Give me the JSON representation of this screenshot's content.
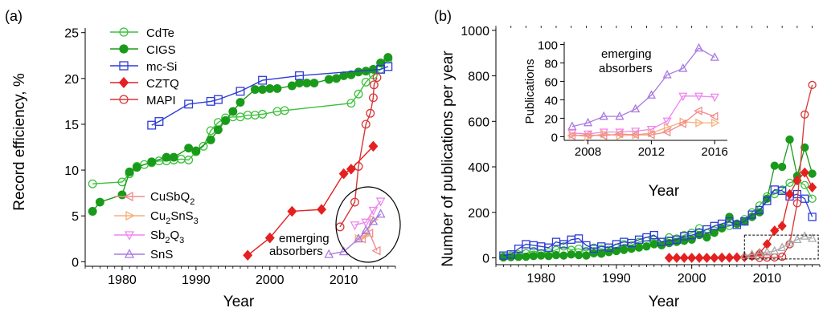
{
  "chart_data": [
    {
      "panel_label": "(a)",
      "type": "line",
      "xlabel": "Year",
      "ylabel": "Record efficiency, %",
      "xlim": [
        1975,
        2017
      ],
      "ylim": [
        -0.5,
        25.5
      ],
      "xticks": [
        "1980",
        "1990",
        "2000",
        "2010"
      ],
      "yticks": [
        "0",
        "5",
        "10",
        "15",
        "20",
        "25"
      ],
      "legend_main": [
        "CdTe",
        "CIGS",
        "mc-Si",
        "CZTQ",
        "MAPI"
      ],
      "legend_emerging": [
        "CuSbQ",
        "Cu",
        "SnS",
        "Sb",
        "Q",
        "SnS"
      ],
      "legend_emerging_sub": [
        "2",
        "2",
        "3",
        "2",
        "3"
      ],
      "annotation": [
        "emerging",
        "absorbers"
      ],
      "series": [
        {
          "name": "CdTe",
          "color": "#3ac03a",
          "marker": "open-circle",
          "x": [
            1976,
            1980,
            1981,
            1982,
            1983,
            1984,
            1985,
            1986,
            1987,
            1988,
            1989,
            1990,
            1991,
            1992,
            1993,
            1994,
            1995,
            1996,
            1997,
            1998,
            1999,
            2001,
            2002,
            2011,
            2012,
            2013,
            2014,
            2015,
            2016
          ],
          "y": [
            8.5,
            8.7,
            9.6,
            10.4,
            10.6,
            10.8,
            11.0,
            11.0,
            11.1,
            11.2,
            11.1,
            12.0,
            12.6,
            14.3,
            15.2,
            15.7,
            15.8,
            15.8,
            16.0,
            16.0,
            16.1,
            16.4,
            16.5,
            17.3,
            18.3,
            19.6,
            20.4,
            21.0,
            22.1
          ]
        },
        {
          "name": "CIGS",
          "color": "#1a9a1a",
          "marker": "filled-circle",
          "x": [
            1976,
            1977,
            1980,
            1981,
            1982,
            1984,
            1986,
            1987,
            1989,
            1990,
            1992,
            1993,
            1994,
            1995,
            1996,
            1998,
            1999,
            2000,
            2001,
            2003,
            2004,
            2005,
            2006,
            2008,
            2009,
            2010,
            2011,
            2012,
            2013,
            2014,
            2015,
            2016
          ],
          "y": [
            5.5,
            6.5,
            7.3,
            9.8,
            10.3,
            10.9,
            11.4,
            11.4,
            12.4,
            12.1,
            13.3,
            14.4,
            15.4,
            16.4,
            17.4,
            18.8,
            18.8,
            18.9,
            18.9,
            19.2,
            19.5,
            19.5,
            19.5,
            19.9,
            20.0,
            20.3,
            20.4,
            20.7,
            20.8,
            21.0,
            21.7,
            22.3
          ]
        },
        {
          "name": "mc-Si",
          "color": "#2d3bd6",
          "marker": "open-square",
          "x": [
            1984,
            1985,
            1989,
            1992,
            1993,
            1996,
            1999,
            2004,
            2015,
            2016
          ],
          "y": [
            14.9,
            15.3,
            17.2,
            17.5,
            17.7,
            18.6,
            19.8,
            20.3,
            21.0,
            21.3
          ]
        },
        {
          "name": "CZTQ",
          "color": "#e42020",
          "marker": "filled-diamond",
          "x": [
            1997,
            2000,
            2003,
            2007,
            2010,
            2011,
            2014
          ],
          "y": [
            0.7,
            2.6,
            5.5,
            5.7,
            9.6,
            10.1,
            12.6
          ]
        },
        {
          "name": "MAPI",
          "color": "#d83636",
          "marker": "open-circle",
          "x": [
            2009.5,
            2011.5,
            2012,
            2013,
            2013.6,
            2014,
            2014.1,
            2014.5
          ],
          "y": [
            3.8,
            6.5,
            10.4,
            15.0,
            16.2,
            17.9,
            19.3,
            20.1
          ]
        },
        {
          "name": "CuSbQ2",
          "color": "#f28c8c",
          "marker": "left-triangle",
          "x": [
            2012.5,
            2013.5,
            2014.5
          ],
          "y": [
            2.5,
            3.1,
            1.2
          ]
        },
        {
          "name": "Cu2SnS3",
          "color": "#f5b07a",
          "marker": "right-triangle",
          "x": [
            2012,
            2013,
            2014
          ],
          "y": [
            2.5,
            2.9,
            4.6
          ]
        },
        {
          "name": "Sb2Q3",
          "color": "#ef86ef",
          "marker": "down-triangle",
          "x": [
            2011.5,
            2013,
            2014,
            2015
          ],
          "y": [
            4.0,
            4.3,
            5.6,
            6.6
          ]
        },
        {
          "name": "SnS",
          "color": "#a97ae0",
          "marker": "up-triangle",
          "x": [
            2008,
            2010,
            2012,
            2013,
            2014,
            2015
          ],
          "y": [
            0.8,
            1.1,
            2.5,
            3.4,
            4.4,
            5.2
          ]
        }
      ]
    },
    {
      "panel_label": "(b)",
      "type": "line",
      "xlabel": "Year",
      "ylabel": "Number of publications per year",
      "xlim": [
        1974,
        2017
      ],
      "ylim": [
        -30,
        1010
      ],
      "xticks": [
        "1980",
        "1990",
        "2000",
        "2010"
      ],
      "yticks": [
        "0",
        "200",
        "400",
        "600",
        "800",
        "1000"
      ],
      "series": [
        {
          "name": "CdTe",
          "color": "#3ac03a",
          "marker": "open-circle",
          "x": [
            1975,
            1976,
            1977,
            1978,
            1979,
            1980,
            1981,
            1982,
            1983,
            1984,
            1985,
            1986,
            1987,
            1988,
            1989,
            1990,
            1991,
            1992,
            1993,
            1994,
            1995,
            1996,
            1997,
            1998,
            1999,
            2000,
            2001,
            2002,
            2003,
            2004,
            2005,
            2006,
            2007,
            2008,
            2009,
            2010,
            2011,
            2012,
            2013,
            2014,
            2015,
            2016
          ],
          "y": [
            5,
            10,
            15,
            20,
            30,
            20,
            25,
            35,
            50,
            35,
            40,
            30,
            45,
            40,
            35,
            45,
            60,
            55,
            70,
            75,
            80,
            70,
            90,
            85,
            100,
            110,
            130,
            110,
            120,
            130,
            140,
            150,
            170,
            200,
            230,
            270,
            280,
            300,
            330,
            340,
            320,
            260
          ]
        },
        {
          "name": "CIGS",
          "color": "#1a9a1a",
          "marker": "filled-circle",
          "x": [
            1975,
            1976,
            1977,
            1978,
            1979,
            1980,
            1981,
            1982,
            1983,
            1984,
            1985,
            1986,
            1987,
            1988,
            1989,
            1990,
            1991,
            1992,
            1993,
            1994,
            1995,
            1996,
            1997,
            1998,
            1999,
            2000,
            2001,
            2002,
            2003,
            2004,
            2005,
            2006,
            2007,
            2008,
            2009,
            2010,
            2011,
            2012,
            2013,
            2014,
            2015,
            2016
          ],
          "y": [
            2,
            3,
            4,
            5,
            8,
            10,
            8,
            12,
            10,
            15,
            12,
            10,
            20,
            18,
            25,
            30,
            35,
            40,
            45,
            50,
            60,
            55,
            65,
            70,
            75,
            80,
            100,
            90,
            110,
            130,
            180,
            150,
            160,
            180,
            200,
            260,
            405,
            400,
            520,
            360,
            485,
            370
          ]
        },
        {
          "name": "mc-Si",
          "color": "#2d3bd6",
          "marker": "open-square",
          "x": [
            1975,
            1976,
            1977,
            1978,
            1979,
            1980,
            1981,
            1982,
            1983,
            1984,
            1985,
            1986,
            1987,
            1988,
            1989,
            1990,
            1991,
            1992,
            1993,
            1994,
            1995,
            1996,
            1997,
            1998,
            1999,
            2000,
            2001,
            2002,
            2003,
            2004,
            2005,
            2006,
            2007,
            2008,
            2009,
            2010,
            2011,
            2012,
            2013,
            2014,
            2015,
            2016
          ],
          "y": [
            10,
            15,
            40,
            60,
            55,
            50,
            45,
            70,
            60,
            80,
            85,
            55,
            40,
            50,
            45,
            60,
            70,
            65,
            80,
            90,
            100,
            70,
            75,
            80,
            95,
            100,
            110,
            125,
            140,
            150,
            160,
            145,
            160,
            190,
            210,
            250,
            300,
            295,
            270,
            280,
            260,
            180
          ]
        },
        {
          "name": "CZTQ",
          "color": "#e42020",
          "marker": "filled-diamond",
          "x": [
            1997,
            1998,
            1999,
            2000,
            2001,
            2002,
            2003,
            2004,
            2005,
            2006,
            2007,
            2008,
            2009,
            2010,
            2011,
            2012,
            2013,
            2014,
            2015,
            2016
          ],
          "y": [
            0,
            0,
            0,
            0,
            0,
            0,
            0,
            1,
            1,
            2,
            3,
            8,
            20,
            60,
            120,
            140,
            280,
            340,
            375,
            310
          ]
        },
        {
          "name": "MAPI",
          "color": "#d83636",
          "marker": "open-circle",
          "x": [
            2009,
            2010,
            2011,
            2012,
            2013,
            2014,
            2015,
            2016
          ],
          "y": [
            0,
            1,
            2,
            5,
            60,
            240,
            630,
            760
          ]
        },
        {
          "name": "emerging absorbers",
          "color": "#aaaaaa",
          "marker": "up-triangle",
          "x": [
            2007,
            2008,
            2009,
            2010,
            2011,
            2012,
            2013,
            2014,
            2015,
            2016
          ],
          "y": [
            10,
            15,
            20,
            25,
            30,
            45,
            65,
            80,
            95,
            85
          ]
        }
      ]
    },
    {
      "panel_label": "inset",
      "type": "line",
      "xlabel": "Year",
      "ylabel": "Publications",
      "title": "emerging absorbers",
      "xlim": [
        2006.5,
        2016.8
      ],
      "ylim": [
        -4,
        103
      ],
      "xticks": [
        "2008",
        "2012",
        "2016"
      ],
      "yticks": [
        "0",
        "20",
        "40",
        "60",
        "80",
        "100"
      ],
      "series": [
        {
          "name": "SnS",
          "color": "#a97ae0",
          "marker": "up-triangle",
          "x": [
            2007,
            2008,
            2009,
            2010,
            2011,
            2012,
            2013,
            2014,
            2015,
            2016
          ],
          "y": [
            11,
            15,
            22,
            22,
            30,
            45,
            67,
            74,
            96,
            86
          ]
        },
        {
          "name": "Sb2Q3",
          "color": "#ef86ef",
          "marker": "down-triangle",
          "x": [
            2007,
            2008,
            2009,
            2010,
            2011,
            2012,
            2013,
            2014,
            2015,
            2016
          ],
          "y": [
            4,
            3,
            5,
            5,
            6,
            8,
            17,
            44,
            44,
            43
          ]
        },
        {
          "name": "Cu2SnS3",
          "color": "#f5b07a",
          "marker": "right-triangle",
          "x": [
            2007,
            2008,
            2009,
            2010,
            2011,
            2012,
            2013,
            2014,
            2015,
            2016
          ],
          "y": [
            2,
            0,
            3,
            1,
            2,
            4,
            10,
            16,
            15,
            15
          ]
        },
        {
          "name": "CuSbQ2",
          "color": "#f28c8c",
          "marker": "left-triangle",
          "x": [
            2007,
            2008,
            2009,
            2010,
            2011,
            2012,
            2013,
            2014,
            2015,
            2016
          ],
          "y": [
            1,
            2,
            1,
            3,
            2,
            2,
            5,
            14,
            28,
            22
          ]
        }
      ]
    }
  ]
}
